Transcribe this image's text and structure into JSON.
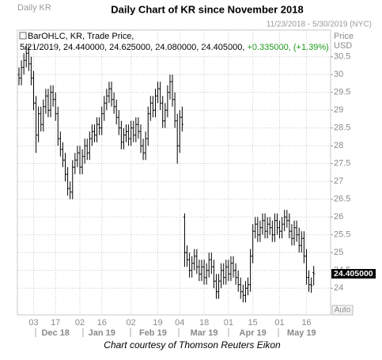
{
  "chart_data": {
    "type": "ohlc",
    "title": "Daily Chart of KR since November 2018",
    "header_left": "Daily KR",
    "header_right": "11/23/2018 - 5/30/2019 (NYC)",
    "axis_title": "Price",
    "axis_unit": "USD",
    "legend": {
      "line1": "BarOHLC, KR, Trade Price,",
      "line2": "5/21/2019, 24.440000, 24.625000, 24.080000, 24.405000,",
      "change": "+0.335000, (+1.39%)"
    },
    "last_label": "24.405000",
    "button": "Auto",
    "caption": "Chart courtesy of Thomson Reuters Eikon",
    "bar_color": "#000000",
    "change_color": "#1a9a1a",
    "grid": true,
    "ylim": [
      23.25,
      31.25
    ],
    "yticks": [
      24,
      24.5,
      25,
      25.5,
      26,
      26.5,
      27,
      27.5,
      28,
      28.5,
      29,
      29.5,
      30,
      30.5
    ],
    "categories": [
      null,
      null,
      null,
      null,
      null,
      null,
      "03",
      null,
      null,
      null,
      null,
      null,
      null,
      null,
      null,
      "17",
      null,
      null,
      null,
      null,
      null,
      null,
      null,
      null,
      null,
      "02",
      null,
      null,
      null,
      null,
      null,
      null,
      null,
      null,
      "16",
      null,
      null,
      null,
      null,
      null,
      null,
      null,
      null,
      null,
      null,
      null,
      "02",
      null,
      null,
      null,
      null,
      null,
      null,
      null,
      null,
      null,
      null,
      "19",
      null,
      null,
      null,
      null,
      null,
      null,
      null,
      null,
      "04",
      null,
      null,
      null,
      null,
      null,
      null,
      null,
      null,
      null,
      "18",
      null,
      null,
      null,
      null,
      null,
      null,
      null,
      null,
      null,
      "01",
      null,
      null,
      null,
      null,
      null,
      null,
      null,
      null,
      null,
      "15",
      null,
      null,
      null,
      null,
      null,
      null,
      null,
      null,
      null,
      null,
      "01",
      null,
      null,
      null,
      null,
      null,
      null,
      null,
      null,
      null,
      null,
      "16",
      null,
      null,
      null
    ],
    "months": [
      null,
      null,
      null,
      null,
      null,
      null,
      null,
      null,
      null,
      null,
      null,
      null,
      null,
      null,
      null,
      "Dec 18",
      null,
      null,
      null,
      null,
      null,
      null,
      null,
      null,
      null,
      null,
      null,
      null,
      null,
      null,
      null,
      null,
      null,
      null,
      "Jan 19",
      null,
      null,
      null,
      null,
      null,
      null,
      null,
      null,
      null,
      null,
      null,
      null,
      null,
      null,
      null,
      null,
      null,
      null,
      null,
      null,
      "Feb 19",
      null,
      null,
      null,
      null,
      null,
      null,
      null,
      null,
      null,
      null,
      null,
      null,
      null,
      null,
      null,
      null,
      null,
      null,
      null,
      null,
      "Mar 19",
      null,
      null,
      null,
      null,
      null,
      null,
      null,
      null,
      null,
      null,
      null,
      null,
      null,
      null,
      null,
      null,
      null,
      null,
      null,
      "Apr 19",
      null,
      null,
      null,
      null,
      null,
      null,
      null,
      null,
      null,
      null,
      null,
      null,
      null,
      null,
      null,
      null,
      null,
      null,
      null,
      "May 19",
      null,
      null,
      null,
      null,
      null
    ],
    "open": [
      30.0,
      29.9,
      30.2,
      30.4,
      30.6,
      30.3,
      29.9,
      29.2,
      28.3,
      28.9,
      28.6,
      29.1,
      29.4,
      29.0,
      29.5,
      29.3,
      28.9,
      28.2,
      27.9,
      27.6,
      27.2,
      26.8,
      26.7,
      27.4,
      27.6,
      27.8,
      27.4,
      27.7,
      28.0,
      27.8,
      28.2,
      28.4,
      28.3,
      28.6,
      28.5,
      28.9,
      29.2,
      29.4,
      29.6,
      29.3,
      29.1,
      28.8,
      28.5,
      28.1,
      28.3,
      28.4,
      28.2,
      28.5,
      28.3,
      28.6,
      28.4,
      28.0,
      27.8,
      28.2,
      28.9,
      29.2,
      29.0,
      29.4,
      29.6,
      29.2,
      28.7,
      29.0,
      29.5,
      29.8,
      29.3,
      28.7,
      28.0,
      28.8,
      26.0,
      25.0,
      24.8,
      24.5,
      24.7,
      24.9,
      24.6,
      24.4,
      24.6,
      24.3,
      24.5,
      24.8,
      24.6,
      24.2,
      23.9,
      24.2,
      24.5,
      24.3,
      24.6,
      24.4,
      24.7,
      24.5,
      24.3,
      24.1,
      23.9,
      23.8,
      24.0,
      24.1,
      24.9,
      25.6,
      25.8,
      25.5,
      25.7,
      25.9,
      25.6,
      25.8,
      25.7,
      25.5,
      25.9,
      25.7,
      25.6,
      25.8,
      26.0,
      25.9,
      25.6,
      25.4,
      25.7,
      25.5,
      25.2,
      25.4,
      24.9,
      24.3,
      24.1,
      24.44
    ],
    "high": [
      30.2,
      30.4,
      30.6,
      30.8,
      30.8,
      30.5,
      30.1,
      29.4,
      29.1,
      29.1,
      29.3,
      29.6,
      29.6,
      29.7,
      29.7,
      29.5,
      29.1,
      28.4,
      28.1,
      27.8,
      27.4,
      27.0,
      27.6,
      27.8,
      28.0,
      28.0,
      27.9,
      28.2,
      28.2,
      28.4,
      28.6,
      28.6,
      28.8,
      28.8,
      29.1,
      29.4,
      29.6,
      29.8,
      29.8,
      29.5,
      29.3,
      29.0,
      28.7,
      28.5,
      28.6,
      28.6,
      28.7,
      28.7,
      28.8,
      28.8,
      28.6,
      28.2,
      28.4,
      29.1,
      29.4,
      29.4,
      29.6,
      29.8,
      29.8,
      29.4,
      29.2,
      29.7,
      30.0,
      30.0,
      29.5,
      28.9,
      29.0,
      29.1,
      26.1,
      25.2,
      25.0,
      24.9,
      25.1,
      25.1,
      24.8,
      24.8,
      24.8,
      24.7,
      25.0,
      25.0,
      24.8,
      24.4,
      24.4,
      24.7,
      24.7,
      24.8,
      24.8,
      24.9,
      24.9,
      24.7,
      24.5,
      24.3,
      24.1,
      24.2,
      24.3,
      25.1,
      25.8,
      26.0,
      26.0,
      25.9,
      26.1,
      26.1,
      26.0,
      26.0,
      25.9,
      26.1,
      26.1,
      25.9,
      26.0,
      26.2,
      26.2,
      26.1,
      25.8,
      25.9,
      25.9,
      25.7,
      25.6,
      25.6,
      25.1,
      24.5,
      24.3,
      24.625
    ],
    "low": [
      29.7,
      29.7,
      30.0,
      30.2,
      30.1,
      29.7,
      29.0,
      27.8,
      28.1,
      28.4,
      28.4,
      28.9,
      28.8,
      28.8,
      29.1,
      28.7,
      28.0,
      27.7,
      27.4,
      27.0,
      26.6,
      26.5,
      26.5,
      27.2,
      27.4,
      27.2,
      27.2,
      27.5,
      27.6,
      27.6,
      28.0,
      28.1,
      28.1,
      28.3,
      28.3,
      28.7,
      29.0,
      29.2,
      29.1,
      28.9,
      28.6,
      28.3,
      27.9,
      27.9,
      28.1,
      28.0,
      28.0,
      28.1,
      28.1,
      28.2,
      27.8,
      27.6,
      27.6,
      28.0,
      28.7,
      28.8,
      28.8,
      29.2,
      29.0,
      28.5,
      28.5,
      28.8,
      29.3,
      29.1,
      28.5,
      27.5,
      27.8,
      28.4,
      24.6,
      24.6,
      24.3,
      24.3,
      24.5,
      24.4,
      24.2,
      24.2,
      24.1,
      24.1,
      24.3,
      24.4,
      24.0,
      23.7,
      23.7,
      24.0,
      24.1,
      24.1,
      24.2,
      24.2,
      24.3,
      24.1,
      23.9,
      23.7,
      23.6,
      23.6,
      23.8,
      23.9,
      24.7,
      25.4,
      25.3,
      25.3,
      25.5,
      25.4,
      25.4,
      25.5,
      25.3,
      25.3,
      25.5,
      25.4,
      25.4,
      25.6,
      25.7,
      25.4,
      25.2,
      25.2,
      25.3,
      25.0,
      25.0,
      24.7,
      24.1,
      23.9,
      23.87,
      24.08
    ],
    "close": [
      29.9,
      30.2,
      30.4,
      30.6,
      30.3,
      29.9,
      29.2,
      28.3,
      28.9,
      28.6,
      29.1,
      29.4,
      29.0,
      29.5,
      29.3,
      28.9,
      28.2,
      27.9,
      27.6,
      27.2,
      26.8,
      26.7,
      27.4,
      27.6,
      27.8,
      27.4,
      27.7,
      28.0,
      27.8,
      28.2,
      28.4,
      28.3,
      28.6,
      28.5,
      28.9,
      29.2,
      29.4,
      29.6,
      29.3,
      29.1,
      28.8,
      28.5,
      28.1,
      28.3,
      28.4,
      28.2,
      28.5,
      28.3,
      28.6,
      28.4,
      28.0,
      27.8,
      28.2,
      28.9,
      29.2,
      29.0,
      29.4,
      29.6,
      29.2,
      28.7,
      29.0,
      29.5,
      29.8,
      29.3,
      28.7,
      28.0,
      28.8,
      28.6,
      25.0,
      24.8,
      24.5,
      24.7,
      24.9,
      24.6,
      24.4,
      24.6,
      24.3,
      24.5,
      24.8,
      24.6,
      24.2,
      23.9,
      24.2,
      24.5,
      24.3,
      24.6,
      24.4,
      24.7,
      24.5,
      24.3,
      24.1,
      23.9,
      23.8,
      24.0,
      24.1,
      24.9,
      25.6,
      25.8,
      25.5,
      25.7,
      25.9,
      25.6,
      25.8,
      25.7,
      25.5,
      25.9,
      25.7,
      25.6,
      25.8,
      26.0,
      25.9,
      25.6,
      25.4,
      25.7,
      25.5,
      25.2,
      25.4,
      24.9,
      24.3,
      24.1,
      24.07,
      24.405
    ]
  }
}
